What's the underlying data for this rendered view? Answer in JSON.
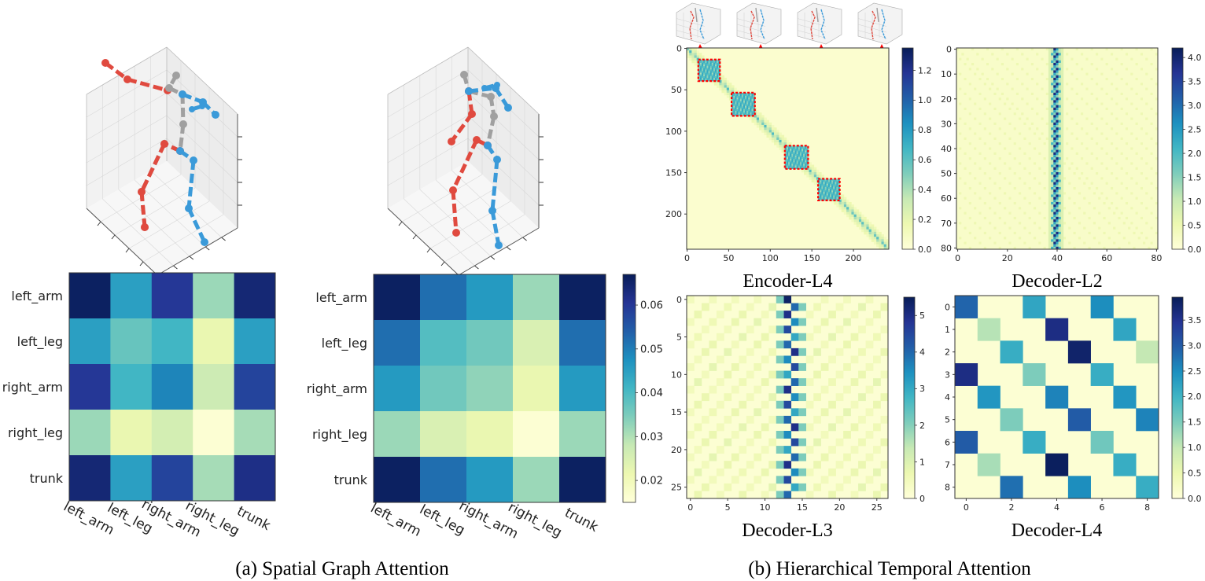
{
  "colormap": "YlGnBu",
  "colors": {
    "left_limb": "#e04a3f",
    "right_limb": "#3a9ad9",
    "trunk": "#a0a0a0",
    "highlight_box": "#ff0000"
  },
  "panel_a": {
    "caption": "(a) Spatial Graph Attention",
    "skeleton_icons": [
      "skeleton-3d-icon",
      "skeleton-3d-icon"
    ]
  },
  "panel_b": {
    "caption": "(b) Hierarchical Temporal Attention",
    "thumbnail_icons": [
      "skeleton-3d-icon",
      "skeleton-3d-icon",
      "skeleton-3d-icon",
      "skeleton-3d-icon"
    ]
  },
  "chart_data": [
    {
      "type": "heatmap",
      "labels": [
        "left_arm",
        "left_leg",
        "right_arm",
        "right_leg",
        "trunk"
      ],
      "values": [
        [
          0.066,
          0.045,
          0.06,
          0.032,
          0.064
        ],
        [
          0.045,
          0.037,
          0.041,
          0.022,
          0.045
        ],
        [
          0.06,
          0.041,
          0.049,
          0.027,
          0.058
        ],
        [
          0.032,
          0.022,
          0.026,
          0.016,
          0.031
        ],
        [
          0.064,
          0.045,
          0.058,
          0.031,
          0.062
        ]
      ]
    },
    {
      "type": "heatmap",
      "labels": [
        "left_arm",
        "left_leg",
        "right_arm",
        "right_leg",
        "trunk"
      ],
      "values": [
        [
          0.066,
          0.052,
          0.046,
          0.032,
          0.066
        ],
        [
          0.052,
          0.039,
          0.036,
          0.025,
          0.052
        ],
        [
          0.046,
          0.036,
          0.033,
          0.022,
          0.046
        ],
        [
          0.032,
          0.025,
          0.022,
          0.016,
          0.032
        ],
        [
          0.066,
          0.052,
          0.046,
          0.032,
          0.066
        ]
      ],
      "colorbar": {
        "range": [
          0.015,
          0.067
        ],
        "ticks": [
          "0.02",
          "0.03",
          "0.04",
          "0.05",
          "0.06"
        ]
      }
    },
    {
      "type": "heatmap",
      "title": "Encoder-L4",
      "size": 243,
      "pattern": "block-diagonal",
      "x_ticks": [
        "0",
        "50",
        "100",
        "150",
        "200"
      ],
      "y_ticks": [
        "0",
        "50",
        "100",
        "150",
        "200"
      ],
      "highlights": [
        [
          14,
          40
        ],
        [
          54,
          82
        ],
        [
          118,
          146
        ],
        [
          158,
          184
        ]
      ],
      "colorbar": {
        "range": [
          0,
          1.35
        ],
        "ticks": [
          "0.0",
          "0.2",
          "0.4",
          "0.6",
          "0.8",
          "1.0",
          "1.2"
        ]
      }
    },
    {
      "type": "heatmap",
      "title": "Decoder-L2",
      "size": 81,
      "pattern": "vertical band around columns 37-42",
      "x_ticks": [
        "0",
        "20",
        "40",
        "60",
        "80"
      ],
      "y_ticks": [
        "0",
        "10",
        "20",
        "30",
        "40",
        "50",
        "60",
        "70",
        "80"
      ],
      "colorbar": {
        "range": [
          0,
          4.2
        ],
        "ticks": [
          "0.0",
          "0.5",
          "1.0",
          "1.5",
          "2.0",
          "2.5",
          "3.0",
          "3.5",
          "4.0"
        ]
      }
    },
    {
      "type": "heatmap",
      "title": "Decoder-L3",
      "size": 27,
      "pattern": "vertical band around columns 12-15",
      "x_ticks": [
        "0",
        "5",
        "10",
        "15",
        "20",
        "25"
      ],
      "y_ticks": [
        "0",
        "5",
        "10",
        "15",
        "20",
        "25"
      ],
      "colorbar": {
        "range": [
          0,
          5.5
        ],
        "ticks": [
          "0",
          "1",
          "2",
          "3",
          "4",
          "5"
        ]
      }
    },
    {
      "type": "heatmap",
      "title": "Decoder-L4",
      "size": 9,
      "cells": [
        [
          0,
          0,
          2.9
        ],
        [
          0,
          3,
          2.2
        ],
        [
          0,
          6,
          2.5
        ],
        [
          1,
          1,
          1.1
        ],
        [
          1,
          4,
          3.6
        ],
        [
          1,
          7,
          2.2
        ],
        [
          2,
          2,
          2.1
        ],
        [
          2,
          5,
          3.8
        ],
        [
          2,
          8,
          1.0
        ],
        [
          3,
          0,
          3.6
        ],
        [
          3,
          3,
          1.5
        ],
        [
          3,
          6,
          2.1
        ],
        [
          4,
          1,
          2.4
        ],
        [
          4,
          4,
          2.6
        ],
        [
          4,
          7,
          2.4
        ],
        [
          5,
          2,
          1.5
        ],
        [
          5,
          5,
          3.0
        ],
        [
          5,
          8,
          2.6
        ],
        [
          6,
          0,
          3.0
        ],
        [
          6,
          3,
          2.1
        ],
        [
          6,
          6,
          1.6
        ],
        [
          7,
          1,
          1.2
        ],
        [
          7,
          4,
          3.9
        ],
        [
          7,
          7,
          2.1
        ],
        [
          8,
          2,
          2.8
        ],
        [
          8,
          5,
          2.5
        ],
        [
          8,
          8,
          2.1
        ]
      ],
      "x_ticks": [
        "0",
        "2",
        "4",
        "6",
        "8"
      ],
      "y_ticks": [
        "0",
        "1",
        "2",
        "3",
        "4",
        "5",
        "6",
        "7",
        "8"
      ],
      "colorbar": {
        "range": [
          0,
          3.95
        ],
        "ticks": [
          "0.0",
          "0.5",
          "1.0",
          "1.5",
          "2.0",
          "2.5",
          "3.0",
          "3.5"
        ]
      }
    }
  ]
}
